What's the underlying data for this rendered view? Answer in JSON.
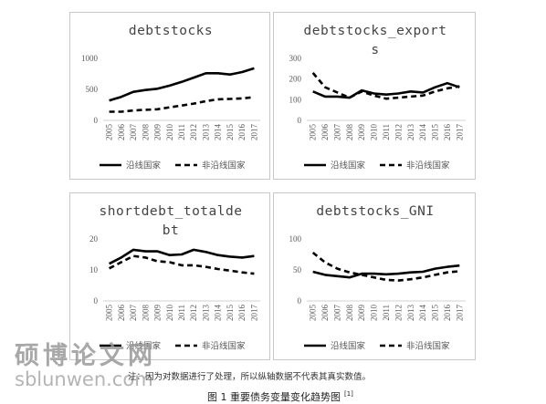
{
  "chart_data": [
    {
      "type": "line",
      "title": "debtstocks",
      "categories": [
        "2005",
        "2006",
        "2007",
        "2008",
        "2009",
        "2010",
        "2011",
        "2012",
        "2013",
        "2014",
        "2015",
        "2016",
        "2017"
      ],
      "ylim": [
        0,
        1000
      ],
      "yticks": [
        0,
        500,
        1000
      ],
      "series": [
        {
          "name": "沿线国家",
          "style": "solid",
          "values": [
            320,
            380,
            460,
            490,
            510,
            560,
            620,
            690,
            760,
            760,
            740,
            780,
            840
          ]
        },
        {
          "name": "非沿线国家",
          "style": "dashed",
          "values": [
            140,
            140,
            160,
            170,
            180,
            210,
            240,
            270,
            310,
            340,
            345,
            355,
            375
          ]
        }
      ]
    },
    {
      "type": "line",
      "title": "debtstocks_exports",
      "categories": [
        "2005",
        "2006",
        "2007",
        "2008",
        "2009",
        "2010",
        "2011",
        "2012",
        "2013",
        "2014",
        "2015",
        "2016",
        "2017"
      ],
      "ylim": [
        0,
        300
      ],
      "yticks": [
        0,
        100,
        200,
        300
      ],
      "series": [
        {
          "name": "沿线国家",
          "style": "solid",
          "values": [
            140,
            115,
            115,
            110,
            145,
            130,
            125,
            130,
            140,
            135,
            160,
            180,
            160
          ]
        },
        {
          "name": "非沿线国家",
          "style": "dashed",
          "values": [
            230,
            160,
            135,
            110,
            140,
            120,
            105,
            110,
            115,
            120,
            140,
            155,
            165
          ]
        }
      ]
    },
    {
      "type": "line",
      "title": "shortdebt_totaldebt",
      "categories": [
        "2005",
        "2006",
        "2007",
        "2008",
        "2009",
        "2010",
        "2011",
        "2012",
        "2013",
        "2014",
        "2015",
        "2016",
        "2017"
      ],
      "ylim": [
        0,
        20
      ],
      "yticks": [
        0,
        10,
        20
      ],
      "series": [
        {
          "name": "沿线国家",
          "style": "solid",
          "values": [
            12,
            14,
            16.5,
            16,
            16,
            14.8,
            15,
            16.5,
            15.8,
            14.8,
            14.3,
            14,
            14.5
          ]
        },
        {
          "name": "非沿线国家",
          "style": "dashed",
          "values": [
            10.5,
            12.5,
            14.5,
            14,
            12.8,
            12.5,
            11.5,
            11.5,
            11,
            10.3,
            9.8,
            9.2,
            8.8
          ]
        }
      ]
    },
    {
      "type": "line",
      "title": "debtstocks_GNI",
      "categories": [
        "2005",
        "2006",
        "2007",
        "2008",
        "2009",
        "2010",
        "2011",
        "2012",
        "2013",
        "2014",
        "2015",
        "2016",
        "2017"
      ],
      "ylim": [
        0,
        100
      ],
      "yticks": [
        0,
        50,
        100
      ],
      "series": [
        {
          "name": "沿线国家",
          "style": "solid",
          "values": [
            47,
            42,
            40,
            38,
            44,
            44,
            43,
            44,
            46,
            47,
            52,
            55,
            57
          ]
        },
        {
          "name": "非沿线国家",
          "style": "dashed",
          "values": [
            78,
            62,
            52,
            46,
            42,
            38,
            34,
            33,
            35,
            38,
            42,
            46,
            48
          ]
        }
      ]
    }
  ],
  "note": "注：因为对数据进行了处理，所以纵轴数据不代表其真实数值。",
  "caption": {
    "text": "图 1  重要债务变量变化趋势图",
    "ref": "[1]"
  },
  "watermark": {
    "text": "硕博论文网",
    "url": "sblunwen.com"
  }
}
